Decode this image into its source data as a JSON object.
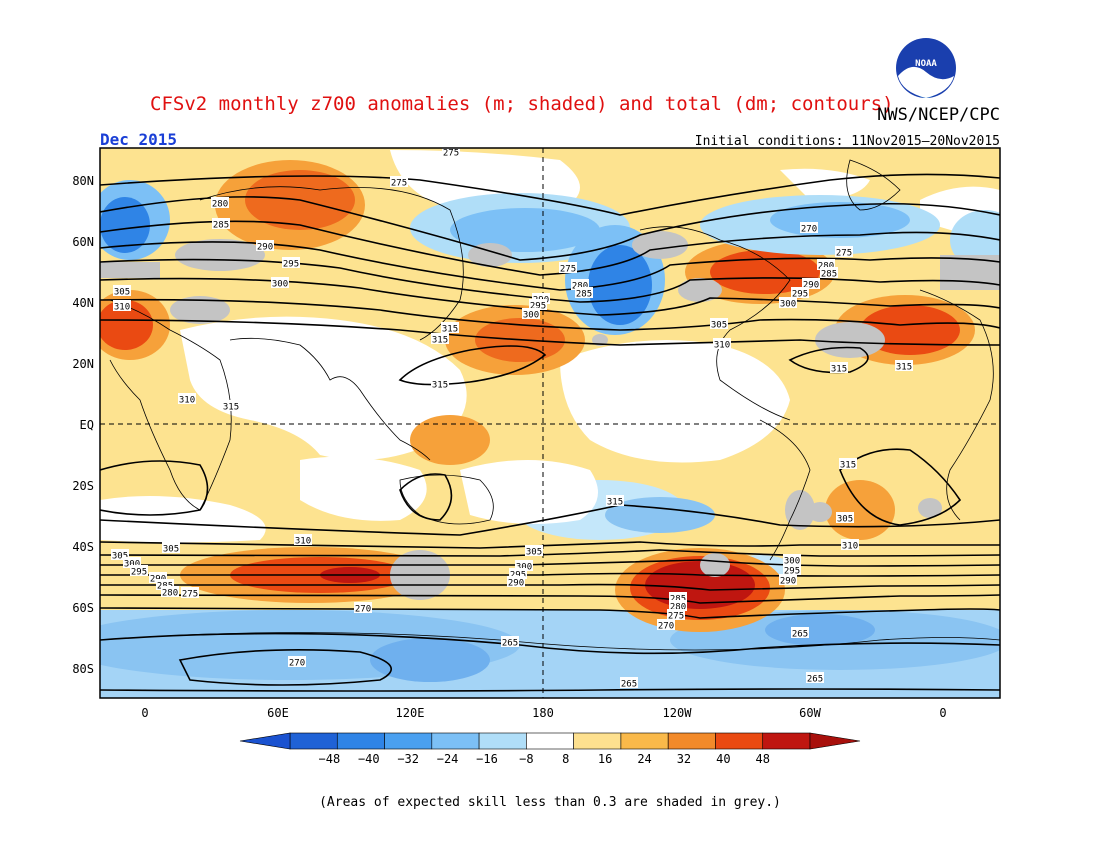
{
  "title": "CFSv2 monthly z700 anomalies (m; shaded) and total (dm; contours)",
  "agency": "NWS/NCEP/CPC",
  "logo_text": "NOAA",
  "valid_month": "Dec 2015",
  "initial_conditions": "Initial conditions: 11Nov2015–20Nov2015",
  "footnote": "(Areas of expected skill less than 0.3 are shaded in grey.)",
  "lat_labels": [
    "80N",
    "60N",
    "40N",
    "20N",
    "EQ",
    "20S",
    "40S",
    "60S",
    "80S"
  ],
  "lon_labels": [
    "0",
    "60E",
    "120E",
    "180",
    "120W",
    "60W",
    "0"
  ],
  "colorbar": {
    "ticks": [
      "−48",
      "−40",
      "−32",
      "−24",
      "−16",
      "−8",
      "8",
      "16",
      "24",
      "32",
      "40",
      "48"
    ],
    "colors": [
      "#1f62d6",
      "#2f84e6",
      "#4aa0f0",
      "#7cc0f6",
      "#b0def8",
      "#ffffff",
      "#fde08f",
      "#f9b94a",
      "#f28a2a",
      "#ea4a12",
      "#bf1610"
    ]
  },
  "contour_labels": [
    "275",
    "275",
    "280",
    "285",
    "290",
    "295",
    "300",
    "305",
    "310",
    "315",
    "315",
    "315",
    "305",
    "310",
    "310",
    "315",
    "275",
    "280",
    "285",
    "290",
    "295",
    "300",
    "305",
    "310",
    "315",
    "270",
    "275",
    "280",
    "285",
    "290",
    "295",
    "300",
    "305",
    "310",
    "315",
    "315",
    "305",
    "300",
    "295",
    "290",
    "285",
    "280",
    "275",
    "270",
    "265",
    "265",
    "270",
    "265",
    "305",
    "300",
    "295",
    "290",
    "285",
    "280",
    "275",
    "270",
    "265",
    "300",
    "295",
    "290",
    "305",
    "310",
    "315"
  ],
  "colors": {
    "title": "#e01010",
    "date": "#1a3fd6",
    "frame": "#000000",
    "skill_grey": "#c4c4c4"
  }
}
